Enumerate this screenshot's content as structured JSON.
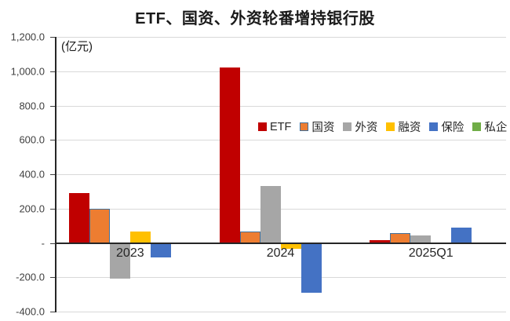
{
  "title": "ETF、国资、外资轮番增持银行股",
  "unit_label": "(亿元)",
  "chart_data": {
    "type": "bar",
    "title": "ETF、国资、外资轮番增持银行股",
    "ylabel": "(亿元)",
    "categories": [
      "2023",
      "2024",
      "2025Q1"
    ],
    "series": [
      {
        "name": "ETF",
        "color": "#C00000",
        "values": [
          290,
          1020,
          15
        ]
      },
      {
        "name": "国资",
        "color": "#ED7D31",
        "border": "#41719C",
        "values": [
          200,
          65,
          55
        ]
      },
      {
        "name": "外资",
        "color": "#A6A6A6",
        "values": [
          -210,
          330,
          45
        ]
      },
      {
        "name": "融资",
        "color": "#FFC000",
        "values": [
          65,
          -35,
          -5
        ]
      },
      {
        "name": "保险",
        "color": "#4472C4",
        "values": [
          -85,
          -290,
          90
        ]
      },
      {
        "name": "私企",
        "color": "#70AD47",
        "values": [
          0,
          0,
          0
        ]
      }
    ],
    "ylim": [
      -400,
      1200
    ],
    "ytick_step": 200,
    "yticks": [
      "1,200.0",
      "1,000.0",
      "800.0",
      "600.0",
      "400.0",
      "200.0",
      "-",
      "-200.0",
      "-400.0"
    ],
    "grid": true,
    "legend_position": "middle-right"
  }
}
